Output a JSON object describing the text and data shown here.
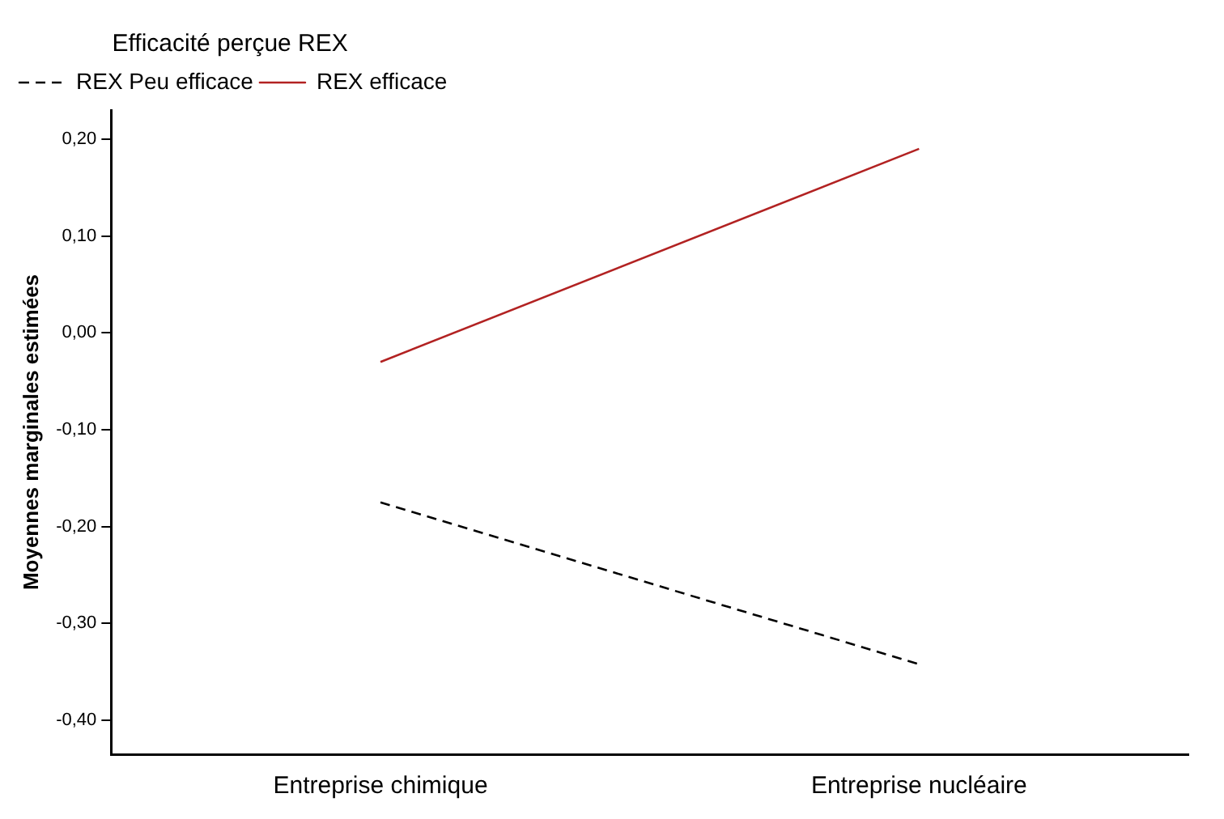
{
  "chart_data": {
    "type": "line",
    "ylabel": "Moyennes marginales estimées",
    "legend_title": "Efficacité perçue REX",
    "legend": "top left",
    "grid": false,
    "marker": "none",
    "categories": [
      "Entreprise chimique",
      "Entreprise nucléaire"
    ],
    "series": [
      {
        "name": "REX Peu efficace",
        "color": "#000000",
        "values": [
          -0.175,
          -0.342
        ],
        "line_style": "dashed"
      },
      {
        "name": "REX efficace",
        "color": "#b22222",
        "values": [
          -0.03,
          0.19
        ],
        "line_style": "solid"
      }
    ],
    "ylim": [
      -0.435,
      0.23
    ],
    "yticks": [
      {
        "value": -0.4,
        "label": "-0,40"
      },
      {
        "value": -0.3,
        "label": "-0,30"
      },
      {
        "value": -0.2,
        "label": "-0,20"
      },
      {
        "value": -0.1,
        "label": "-0,10"
      },
      {
        "value": 0,
        "label": "0,00"
      },
      {
        "value": 0.1,
        "label": "0,10"
      },
      {
        "value": 0.2,
        "label": "0,20"
      }
    ]
  }
}
